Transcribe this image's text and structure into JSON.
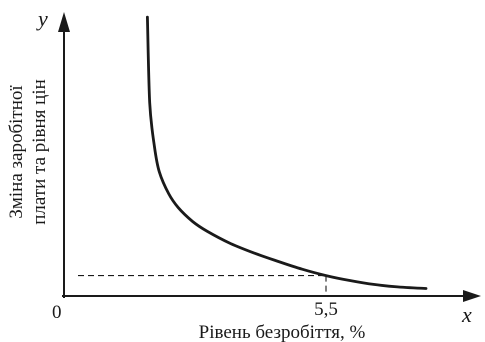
{
  "chart_data": {
    "type": "line",
    "title": "",
    "xlabel": "Рівень безробіття, %",
    "ylabel_lines": [
      "Зміна заробітної",
      "плати та рівня цін"
    ],
    "x_axis_letter": "x",
    "y_axis_letter": "y",
    "origin_label": "0",
    "tick_labels": [
      "5,5"
    ],
    "highlight_x": 5.5,
    "xlim": [
      0,
      8.2
    ],
    "ylim": [
      0,
      10
    ],
    "grid": false,
    "legend": "none",
    "series": [
      {
        "x": [
          1.75,
          1.8,
          1.9,
          2.0,
          2.2,
          2.4,
          2.7,
          3.0,
          3.5,
          4.0,
          4.5,
          5.0,
          5.5,
          6.0,
          6.5,
          7.0,
          7.6
        ],
        "values": [
          10.1,
          7.0,
          5.4,
          4.5,
          3.7,
          3.2,
          2.7,
          2.35,
          1.9,
          1.55,
          1.25,
          0.97,
          0.74,
          0.56,
          0.42,
          0.33,
          0.27
        ]
      }
    ]
  }
}
